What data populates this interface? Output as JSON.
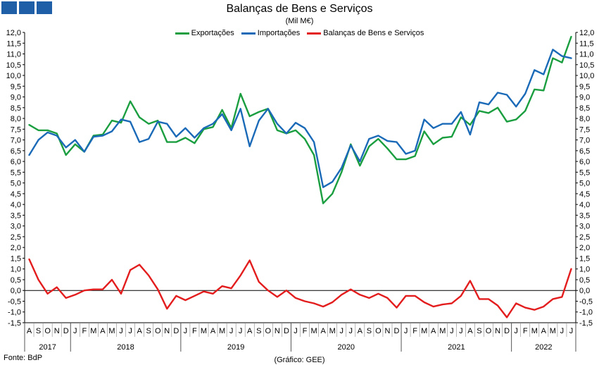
{
  "header": {
    "title": "Balanças de Bens e Serviços",
    "subtitle": "(Mil M€)",
    "logo_color": "#1f5fa8"
  },
  "footer": {
    "source": "Fonte: BdP",
    "credit": "(Gráfico: GEE)"
  },
  "chart_data": {
    "type": "line",
    "title": "Balanças de Bens e Serviços",
    "subtitle": "(Mil M€)",
    "ylim": [
      -1.5,
      12.0
    ],
    "ytick_step": 0.5,
    "grid": false,
    "legend_position": "top-center",
    "x_month_labels": [
      "A",
      "S",
      "O",
      "N",
      "D",
      "J",
      "F",
      "M",
      "A",
      "M",
      "J",
      "J",
      "A",
      "S",
      "O",
      "N",
      "D",
      "J",
      "F",
      "M",
      "A",
      "M",
      "J",
      "J",
      "A",
      "S",
      "O",
      "N",
      "D",
      "J",
      "F",
      "M",
      "A",
      "M",
      "J",
      "J",
      "A",
      "S",
      "O",
      "N",
      "D",
      "J",
      "F",
      "M",
      "A",
      "M",
      "J",
      "J",
      "A",
      "S",
      "O",
      "N",
      "D",
      "J",
      "F",
      "M",
      "A",
      "M",
      "J",
      "J"
    ],
    "years": [
      {
        "label": "2017",
        "start": 0,
        "end": 4
      },
      {
        "label": "2018",
        "start": 5,
        "end": 16
      },
      {
        "label": "2019",
        "start": 17,
        "end": 28
      },
      {
        "label": "2020",
        "start": 29,
        "end": 40
      },
      {
        "label": "2021",
        "start": 41,
        "end": 52
      },
      {
        "label": "2022",
        "start": 53,
        "end": 59
      }
    ],
    "series": [
      {
        "name": "Exportações",
        "color": "#1a9e3f",
        "values": [
          7.7,
          7.45,
          7.45,
          7.3,
          6.3,
          6.8,
          6.45,
          7.2,
          7.25,
          7.9,
          7.8,
          8.8,
          8.05,
          7.75,
          7.9,
          6.9,
          6.9,
          7.1,
          6.85,
          7.5,
          7.6,
          8.4,
          7.55,
          9.15,
          8.1,
          8.3,
          8.45,
          7.45,
          7.3,
          7.45,
          7.05,
          6.3,
          4.05,
          4.5,
          5.5,
          6.8,
          5.8,
          6.7,
          7.05,
          6.6,
          6.1,
          6.1,
          6.25,
          7.4,
          6.8,
          7.1,
          7.15,
          8.05,
          7.7,
          8.35,
          8.25,
          8.5,
          7.85,
          7.95,
          8.35,
          9.35,
          9.3,
          10.8,
          10.6,
          11.8
        ]
      },
      {
        "name": "Importações",
        "color": "#1a6ab8",
        "values": [
          6.3,
          7.0,
          7.35,
          7.2,
          6.65,
          7.0,
          6.45,
          7.15,
          7.2,
          7.4,
          7.95,
          7.85,
          6.9,
          7.05,
          7.85,
          7.75,
          7.15,
          7.55,
          7.1,
          7.55,
          7.75,
          8.2,
          7.45,
          8.45,
          6.7,
          7.9,
          8.45,
          7.75,
          7.3,
          7.8,
          7.55,
          6.9,
          4.8,
          5.05,
          5.7,
          6.75,
          6.0,
          7.05,
          7.2,
          6.95,
          6.9,
          6.35,
          6.5,
          7.95,
          7.55,
          7.75,
          7.75,
          8.3,
          7.25,
          8.75,
          8.65,
          9.2,
          9.1,
          8.55,
          9.15,
          10.25,
          10.05,
          11.2,
          10.9,
          10.8
        ]
      },
      {
        "name": "Balanças de Bens e Serviços",
        "color": "#e31d1d",
        "values": [
          1.45,
          0.5,
          -0.15,
          0.15,
          -0.35,
          -0.2,
          0.0,
          0.05,
          0.05,
          0.5,
          -0.15,
          0.95,
          1.2,
          0.7,
          0.05,
          -0.85,
          -0.25,
          -0.45,
          -0.25,
          -0.05,
          -0.15,
          0.2,
          0.1,
          0.7,
          1.4,
          0.4,
          0.0,
          -0.3,
          0.0,
          -0.35,
          -0.5,
          -0.6,
          -0.75,
          -0.55,
          -0.2,
          0.05,
          -0.2,
          -0.35,
          -0.15,
          -0.35,
          -0.8,
          -0.25,
          -0.25,
          -0.55,
          -0.75,
          -0.65,
          -0.6,
          -0.25,
          0.45,
          -0.4,
          -0.4,
          -0.7,
          -1.25,
          -0.6,
          -0.8,
          -0.9,
          -0.75,
          -0.4,
          -0.3,
          1.0
        ]
      }
    ]
  }
}
